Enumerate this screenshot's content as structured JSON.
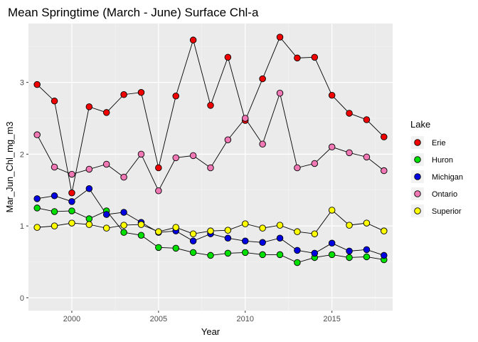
{
  "chart_data": {
    "type": "line",
    "title": "Mean Springtime (March - June) Surface Chl-a",
    "xlabel": "Year",
    "ylabel": "Mar_Jun_Chl_mg_m3",
    "xlim": [
      1997.5,
      2018.5
    ],
    "ylim": [
      -0.18,
      3.82
    ],
    "x_ticks": [
      2000,
      2005,
      2010,
      2015
    ],
    "y_ticks": [
      0,
      1,
      2,
      3
    ],
    "grid": true,
    "legend_title": "Lake",
    "legend_position": "right",
    "x": [
      1998,
      1999,
      2000,
      2001,
      2002,
      2003,
      2004,
      2005,
      2006,
      2007,
      2008,
      2009,
      2010,
      2011,
      2012,
      2013,
      2014,
      2015,
      2016,
      2017,
      2018
    ],
    "series": [
      {
        "name": "Erie",
        "color": "#F00000",
        "values": [
          2.97,
          2.74,
          1.46,
          2.66,
          2.58,
          2.83,
          2.86,
          1.81,
          2.81,
          3.59,
          2.68,
          3.35,
          2.47,
          3.05,
          3.63,
          3.34,
          3.35,
          2.82,
          2.57,
          2.48,
          2.24
        ]
      },
      {
        "name": "Huron",
        "color": "#00E000",
        "values": [
          1.25,
          1.2,
          1.21,
          1.1,
          1.21,
          0.91,
          0.87,
          0.7,
          0.69,
          0.63,
          0.59,
          0.62,
          0.63,
          0.6,
          0.6,
          0.49,
          0.56,
          0.6,
          0.56,
          0.57,
          0.53
        ]
      },
      {
        "name": "Michigan",
        "color": "#0000E0",
        "values": [
          1.38,
          1.42,
          1.34,
          1.52,
          1.16,
          1.19,
          1.05,
          0.91,
          0.93,
          0.79,
          0.89,
          0.83,
          0.79,
          0.77,
          0.83,
          0.66,
          0.62,
          0.76,
          0.65,
          0.67,
          0.59
        ]
      },
      {
        "name": "Ontario",
        "color": "#F078B4",
        "values": [
          2.27,
          1.82,
          1.72,
          1.79,
          1.86,
          1.68,
          2.0,
          1.49,
          1.95,
          1.98,
          1.81,
          2.2,
          2.5,
          2.14,
          2.85,
          1.81,
          1.87,
          2.1,
          2.02,
          1.96,
          1.77
        ]
      },
      {
        "name": "Superior",
        "color": "#FFFF00",
        "values": [
          0.98,
          1.0,
          1.04,
          1.02,
          0.97,
          1.01,
          1.02,
          0.92,
          0.98,
          0.89,
          0.93,
          0.94,
          1.03,
          0.97,
          1.01,
          0.92,
          0.89,
          1.22,
          1.01,
          1.04,
          0.93
        ]
      }
    ]
  }
}
